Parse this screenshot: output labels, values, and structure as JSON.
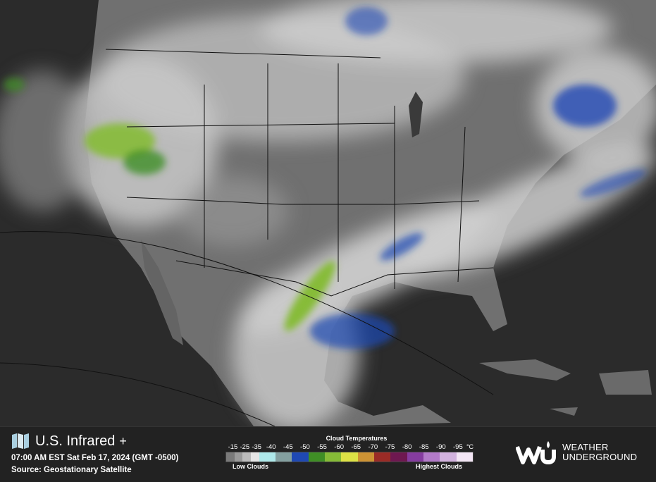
{
  "header": {
    "title": "U.S. Infrared",
    "add_label": "+",
    "timestamp": "07:00 AM EST Sat Feb 17, 2024 (GMT -0500)",
    "source": "Source: Geostationary Satellite"
  },
  "legend": {
    "title": "Cloud Temperatures",
    "labels": [
      "-15",
      "-25",
      "-35",
      "-40",
      "-45",
      "-50",
      "-55",
      "-60",
      "-65",
      "-70",
      "-75",
      "-80",
      "-85",
      "-90",
      "-95"
    ],
    "unit": "°C",
    "colors": [
      "#7a7a7a",
      "#9a9a9a",
      "#bcbcbc",
      "#e6e6e6",
      "#aee9ea",
      "#84a0a0",
      "#1f49b4",
      "#3f8e25",
      "#86bb37",
      "#dde245",
      "#cd9334",
      "#9a2b26",
      "#6e1850",
      "#853c9f",
      "#b27ac8",
      "#d2b2de",
      "#f3e6f5"
    ],
    "low_label": "Low Clouds",
    "high_label": "Highest Clouds"
  },
  "brand": {
    "logo_mark": "wu",
    "name_line1": "WEATHER",
    "name_line2": "UNDERGROUND"
  },
  "map": {
    "ocean": "#2a2a2a",
    "land": "#6e6e6e",
    "cloud": "#d8d8d8",
    "borders": "#111111"
  }
}
